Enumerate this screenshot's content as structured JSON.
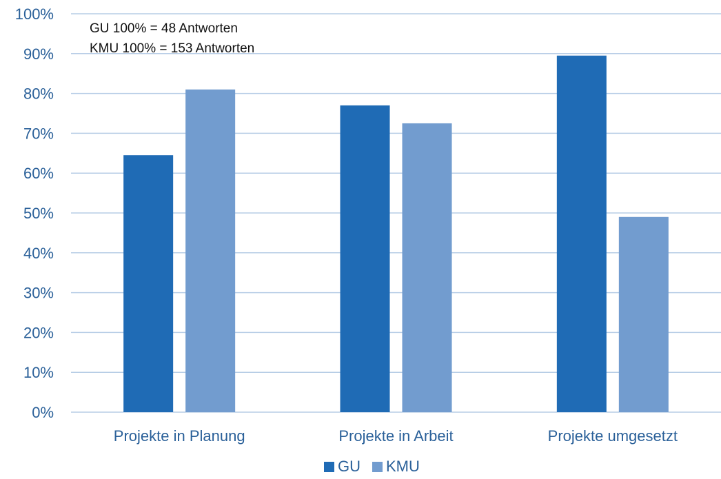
{
  "chart_data": {
    "type": "bar",
    "title": "",
    "xlabel": "",
    "ylabel": "",
    "categories": [
      "Projekte in Planung",
      "Projekte in Arbeit",
      "Projekte umgesetzt"
    ],
    "series": [
      {
        "name": "GU",
        "values": [
          64.5,
          77,
          89.5
        ],
        "color": "#1f6bb5"
      },
      {
        "name": "KMU",
        "values": [
          81,
          72.5,
          49
        ],
        "color": "#729ccf"
      }
    ],
    "ylim": [
      0,
      100
    ],
    "y_ticks": [
      "0%",
      "10%",
      "20%",
      "30%",
      "40%",
      "50%",
      "60%",
      "70%",
      "80%",
      "90%",
      "100%"
    ],
    "grid": true,
    "legend_position": "bottom",
    "annotations": [
      "GU 100% = 48 Antworten",
      "KMU 100% = 153 Antworten"
    ],
    "axis_text_color": "#2a6099",
    "gridline_color": "#b7cde6"
  }
}
